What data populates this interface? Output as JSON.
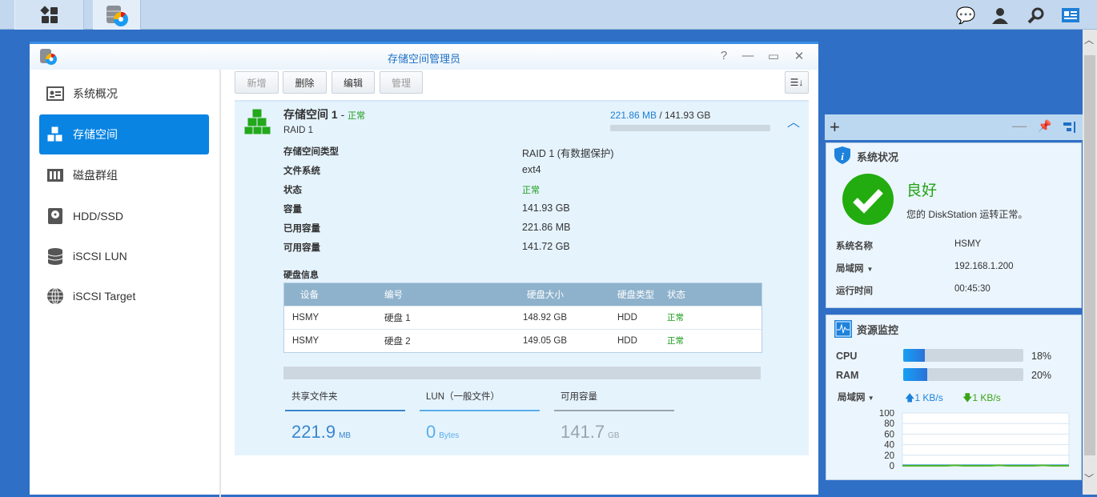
{
  "taskbar": {
    "icons": [
      "main-menu-icon",
      "storage-manager-icon"
    ],
    "right_icons": [
      "chat-icon",
      "user-icon",
      "search-icon",
      "widgets-icon"
    ]
  },
  "window": {
    "title": "存储空间管理员",
    "controls": [
      "help-icon",
      "minimize-icon",
      "maximize-icon",
      "close-icon"
    ]
  },
  "sidebar": {
    "items": [
      {
        "label": "系统概况",
        "icon": "overview-icon"
      },
      {
        "label": "存储空间",
        "icon": "volume-cubes-icon",
        "active": true
      },
      {
        "label": "磁盘群组",
        "icon": "disk-group-icon"
      },
      {
        "label": "HDD/SSD",
        "icon": "hdd-icon"
      },
      {
        "label": "iSCSI LUN",
        "icon": "database-icon"
      },
      {
        "label": "iSCSI Target",
        "icon": "globe-icon"
      }
    ]
  },
  "toolbar": {
    "create": "新增",
    "delete": "删除",
    "edit": "编辑",
    "manage": "管理"
  },
  "volume": {
    "name": "存储空间 1",
    "separator": "-",
    "status": "正常",
    "raid": "RAID 1",
    "used": "221.86 MB",
    "total": "/ 141.93 GB",
    "used_fraction": 0.0015,
    "props": [
      {
        "label": "存储空间类型",
        "value": "RAID 1 (有数据保护)"
      },
      {
        "label": "文件系统",
        "value": "ext4"
      },
      {
        "label": "状态",
        "value": "正常",
        "status": true
      },
      {
        "label": "容量",
        "value": "141.93 GB"
      },
      {
        "label": "已用容量",
        "value": "221.86 MB"
      },
      {
        "label": "可用容量",
        "value": "141.72 GB"
      }
    ],
    "disk_info_title": "硬盘信息",
    "disk_columns": [
      "设备",
      "编号",
      "硬盘大小",
      "硬盘类型",
      "状态"
    ],
    "disks": [
      [
        "HSMY",
        "硬盘 1",
        "148.92 GB",
        "HDD",
        "正常"
      ],
      [
        "HSMY",
        "硬盘 2",
        "149.05 GB",
        "HDD",
        "正常"
      ]
    ],
    "usage": [
      {
        "label": "共享文件夹",
        "value": "221.9",
        "unit": "MB",
        "color": "#3a86cc"
      },
      {
        "label": "LUN（一般文件）",
        "value": "0",
        "unit": "Bytes",
        "color": "#5aaeea"
      },
      {
        "label": "可用容量",
        "value": "141.7",
        "unit": "GB",
        "color": "#9aa3ad"
      }
    ]
  },
  "system_status": {
    "title": "系统状况",
    "health": "良好",
    "message": "您的 DiskStation 运转正常。",
    "rows": [
      {
        "label": "系统名称",
        "value": "HSMY"
      },
      {
        "label": "局域网",
        "value": "192.168.1.200",
        "dropdown": true
      },
      {
        "label": "运行时间",
        "value": "00:45:30"
      }
    ]
  },
  "resource_monitor": {
    "title": "资源监控",
    "cpu_label": "CPU",
    "cpu": 18,
    "cpu_text": "18%",
    "ram_label": "RAM",
    "ram": 20,
    "ram_text": "20%",
    "net_label": "局域网",
    "upload": "1 KB/s",
    "download": "1 KB/s",
    "chart_data": {
      "type": "line",
      "ylim": [
        0,
        100
      ],
      "yticks": [
        "100",
        "80",
        "60",
        "40",
        "20",
        "0"
      ],
      "series": [
        {
          "color": "#2a8fd8",
          "values": [
            1,
            1,
            1,
            1,
            1,
            1,
            1,
            1,
            1,
            1,
            1,
            1,
            1,
            1,
            1,
            1,
            1,
            1,
            1,
            1
          ]
        },
        {
          "color": "#4fb52a",
          "values": [
            0,
            0,
            0,
            0,
            0,
            0,
            1,
            0,
            0,
            0,
            0,
            1,
            0,
            0,
            0,
            0,
            1,
            0,
            0,
            0
          ]
        }
      ]
    }
  }
}
